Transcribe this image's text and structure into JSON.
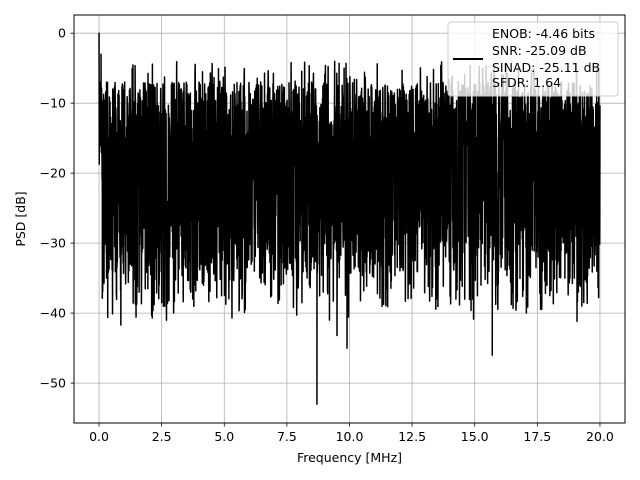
{
  "chart_data": {
    "type": "line",
    "title": "",
    "xlabel": "Frequency [MHz]",
    "ylabel": "PSD [dB]",
    "xlim": [
      -1.0,
      21.0
    ],
    "ylim": [
      -55.7,
      2.6
    ],
    "xticks": [
      0.0,
      2.5,
      5.0,
      7.5,
      10.0,
      12.5,
      15.0,
      17.5,
      20.0
    ],
    "xtick_labels": [
      "0.0",
      "2.5",
      "5.0",
      "7.5",
      "10.0",
      "12.5",
      "15.0",
      "17.5",
      "20.0"
    ],
    "yticks": [
      0,
      -10,
      -20,
      -30,
      -40,
      -50
    ],
    "ytick_labels": [
      "0",
      "−10",
      "−20",
      "−30",
      "−40",
      "−50"
    ],
    "grid": true,
    "legend_position": "top-right",
    "legend_lines": [
      "ENOB: -4.46 bits",
      "SNR: -25.09 dB",
      "SINAD: -25.11 dB",
      "SFDR: 1.64"
    ],
    "series": [
      {
        "color": "#000000",
        "noise_band_db": [
          -30,
          -10
        ],
        "points": [
          [
            0.0,
            0
          ],
          [
            0.03,
            -7
          ],
          [
            0.08,
            -3
          ],
          [
            0.13,
            -12
          ],
          [
            0.2,
            -28
          ],
          [
            0.3,
            -35
          ],
          [
            0.42,
            -20
          ],
          [
            0.55,
            -34
          ],
          [
            0.7,
            -31
          ],
          [
            0.87,
            -41.7
          ],
          [
            1.05,
            -28
          ],
          [
            1.25,
            -33
          ],
          [
            1.45,
            -38.7
          ],
          [
            1.6,
            -37
          ],
          [
            1.8,
            -25
          ],
          [
            1.95,
            -36.5
          ],
          [
            2.1,
            -40.3
          ],
          [
            2.25,
            -30
          ],
          [
            2.4,
            -36
          ],
          [
            2.5,
            -38.5
          ],
          [
            2.62,
            -39
          ],
          [
            2.8,
            -28
          ],
          [
            3.0,
            -33
          ],
          [
            3.18,
            -29
          ],
          [
            3.4,
            -31
          ],
          [
            3.5,
            -28
          ],
          [
            3.6,
            -32
          ],
          [
            3.8,
            -36
          ],
          [
            4.0,
            -28
          ],
          [
            4.2,
            -33
          ],
          [
            4.5,
            -31
          ],
          [
            4.65,
            -23
          ],
          [
            4.8,
            -28
          ],
          [
            5.0,
            -25
          ],
          [
            5.4,
            -29
          ],
          [
            5.6,
            -24
          ],
          [
            5.9,
            -31
          ],
          [
            6.2,
            -34
          ],
          [
            6.5,
            -27
          ],
          [
            6.8,
            -31
          ],
          [
            7.1,
            -23
          ],
          [
            7.3,
            -29
          ],
          [
            7.5,
            -26
          ],
          [
            7.75,
            -33
          ],
          [
            8.1,
            -38.5
          ],
          [
            8.4,
            -36
          ],
          [
            8.7,
            -53
          ],
          [
            8.95,
            -37
          ],
          [
            9.2,
            -41
          ],
          [
            9.5,
            -43.2
          ],
          [
            9.75,
            -25
          ],
          [
            9.9,
            -45
          ],
          [
            10.1,
            -29
          ],
          [
            10.4,
            -34
          ],
          [
            10.7,
            -32
          ],
          [
            11.1,
            -26
          ],
          [
            11.45,
            -38
          ],
          [
            11.8,
            -30
          ],
          [
            12.3,
            -28
          ],
          [
            12.7,
            -34
          ],
          [
            13.1,
            -27
          ],
          [
            13.5,
            -26
          ],
          [
            13.75,
            -26
          ],
          [
            14.0,
            -30
          ],
          [
            14.25,
            -38
          ],
          [
            14.6,
            -38
          ],
          [
            14.9,
            -33
          ],
          [
            15.25,
            -36
          ],
          [
            15.7,
            -46
          ],
          [
            15.95,
            -34
          ],
          [
            16.3,
            -31
          ],
          [
            16.7,
            -37
          ],
          [
            17.1,
            -35
          ],
          [
            17.3,
            -31
          ],
          [
            17.7,
            -34
          ],
          [
            18.0,
            -37.5
          ],
          [
            18.3,
            -33
          ],
          [
            18.6,
            -35
          ],
          [
            18.85,
            -28
          ],
          [
            19.1,
            -34
          ],
          [
            19.5,
            -33
          ],
          [
            19.9,
            -34
          ]
        ]
      }
    ]
  }
}
